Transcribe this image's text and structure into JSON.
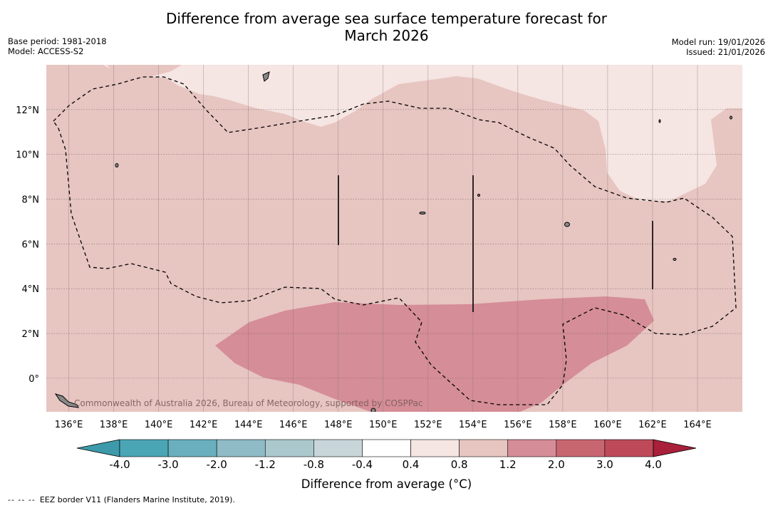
{
  "title_line1": "Difference from average sea surface temperature forecast for",
  "title_line2": "March 2026",
  "meta_left": {
    "base_period": "Base period: 1981-2018",
    "model": "Model: ACCESS-S2"
  },
  "meta_right": {
    "model_run": "Model run: 19/01/2026",
    "issued": "Issued: 21/01/2026"
  },
  "map": {
    "lon_labels": [
      "136°E",
      "138°E",
      "140°E",
      "142°E",
      "144°E",
      "146°E",
      "148°E",
      "150°E",
      "152°E",
      "154°E",
      "156°E",
      "158°E",
      "160°E",
      "162°E",
      "164°E"
    ],
    "lat_labels": [
      "12°N",
      "10°N",
      "8°N",
      "6°N",
      "4°N",
      "2°N",
      "0°"
    ],
    "lon_range": [
      135,
      166
    ],
    "lat_range": [
      -1.5,
      14
    ],
    "copyright": "Commonwealth of Australia 2026, Bureau of Meteorology, supported by COSPPac"
  },
  "colorbar": {
    "ticks": [
      "-4.0",
      "-3.0",
      "-2.0",
      "-1.2",
      "-0.8",
      "-0.4",
      "0.4",
      "0.8",
      "1.2",
      "2.0",
      "3.0",
      "4.0"
    ],
    "colors": [
      "#3d9aaa",
      "#4aa5b5",
      "#6aafbd",
      "#8ebbc6",
      "#abc8cd",
      "#c8d6da",
      "#ffffff",
      "#f5e5e3",
      "#e7c5c1",
      "#d58d97",
      "#c86670",
      "#be4a59",
      "#a8203a"
    ],
    "label": "Difference from average (°C)"
  },
  "footer": {
    "dash": "-- -- --",
    "text": "EEZ border V11 (Flanders Marine Institute, 2019)."
  }
}
